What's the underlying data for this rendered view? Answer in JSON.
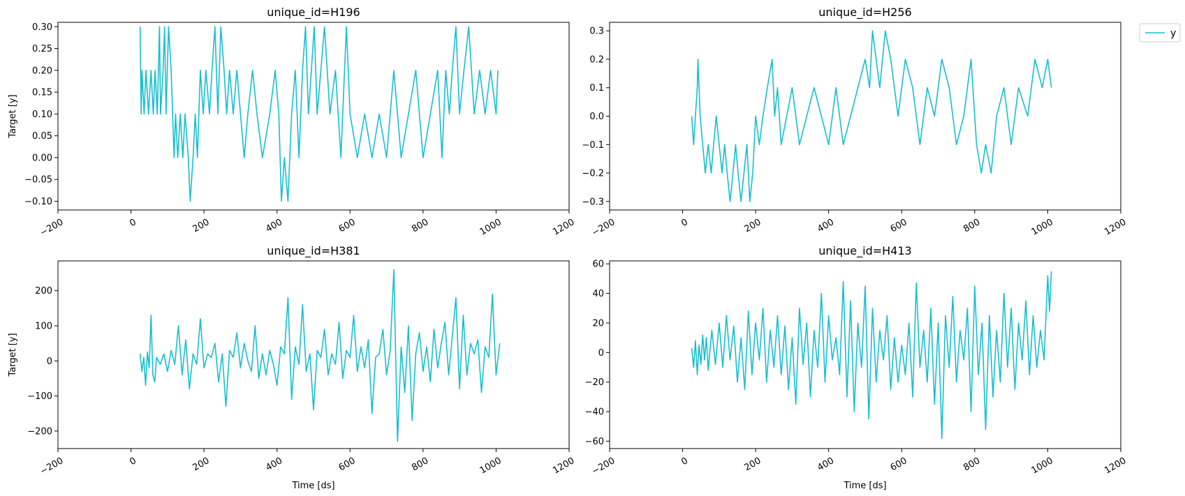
{
  "chart_data": [
    {
      "type": "line",
      "title": "unique_id=H196",
      "xlabel": "",
      "ylabel": "Target [y]",
      "xlim": [
        -200,
        1200
      ],
      "ylim": [
        -0.12,
        0.31
      ],
      "xticks": [
        -200,
        0,
        200,
        400,
        600,
        800,
        1000,
        1200
      ],
      "yticks": [
        -0.1,
        -0.05,
        0.0,
        0.05,
        0.1,
        0.15,
        0.2,
        0.25,
        0.3
      ],
      "ytick_labels": [
        "−0.10",
        "−0.05",
        "0.00",
        "0.05",
        "0.10",
        "0.15",
        "0.20",
        "0.25",
        "0.30"
      ],
      "series": [
        {
          "name": "y",
          "color": "#17becf",
          "x": [
            25,
            28,
            30,
            36,
            41,
            48,
            55,
            61,
            66,
            72,
            78,
            81,
            88,
            92,
            96,
            103,
            110,
            118,
            122,
            128,
            135,
            142,
            148,
            157,
            162,
            170,
            176,
            182,
            190,
            198,
            205,
            215,
            222,
            230,
            238,
            246,
            255,
            262,
            270,
            280,
            290,
            300,
            310,
            320,
            333,
            345,
            360,
            380,
            395,
            405,
            412,
            420,
            430,
            440,
            450,
            460,
            470,
            478,
            486,
            494,
            502,
            510,
            520,
            530,
            545,
            560,
            575,
            585,
            590,
            600,
            620,
            640,
            660,
            680,
            700,
            720,
            740,
            760,
            780,
            800,
            820,
            840,
            852,
            862,
            872,
            880,
            890,
            900,
            912,
            925,
            940,
            955,
            970,
            985,
            1000,
            1005
          ],
          "y": [
            0.3,
            0.1,
            0.2,
            0.1,
            0.2,
            0.1,
            0.2,
            0.1,
            0.2,
            0.1,
            0.3,
            0.1,
            0.2,
            0.3,
            0.1,
            0.3,
            0.2,
            0.0,
            0.1,
            0.0,
            0.1,
            0.0,
            0.1,
            0.0,
            -0.1,
            0.0,
            0.1,
            0.0,
            0.2,
            0.1,
            0.2,
            0.1,
            0.2,
            0.3,
            0.1,
            0.3,
            0.2,
            0.1,
            0.2,
            0.1,
            0.2,
            0.1,
            0.0,
            0.1,
            0.2,
            0.1,
            0.0,
            0.1,
            0.2,
            0.1,
            -0.1,
            0.0,
            -0.1,
            0.1,
            0.2,
            0.0,
            0.2,
            0.3,
            0.1,
            0.2,
            0.3,
            0.1,
            0.2,
            0.3,
            0.1,
            0.2,
            0.0,
            0.2,
            0.3,
            0.1,
            0.0,
            0.1,
            0.0,
            0.1,
            0.0,
            0.2,
            0.0,
            0.1,
            0.2,
            0.0,
            0.1,
            0.2,
            0.0,
            0.2,
            0.1,
            0.2,
            0.3,
            0.1,
            0.2,
            0.3,
            0.1,
            0.2,
            0.1,
            0.2,
            0.1,
            0.2
          ]
        }
      ]
    },
    {
      "type": "line",
      "title": "unique_id=H256",
      "xlabel": "",
      "ylabel": "",
      "xlim": [
        -200,
        1200
      ],
      "ylim": [
        -0.33,
        0.33
      ],
      "xticks": [
        -200,
        0,
        200,
        400,
        600,
        800,
        1000,
        1200
      ],
      "yticks": [
        -0.3,
        -0.2,
        -0.1,
        0.0,
        0.1,
        0.2,
        0.3
      ],
      "ytick_labels": [
        "−0.3",
        "−0.2",
        "−0.1",
        "0.0",
        "0.1",
        "0.2",
        "0.3"
      ],
      "series": [
        {
          "name": "y",
          "color": "#17becf",
          "x": [
            25,
            30,
            35,
            40,
            42,
            48,
            55,
            62,
            70,
            78,
            85,
            92,
            100,
            108,
            115,
            122,
            130,
            138,
            145,
            152,
            160,
            168,
            176,
            184,
            192,
            200,
            210,
            220,
            232,
            245,
            252,
            260,
            270,
            285,
            300,
            320,
            340,
            360,
            380,
            400,
            420,
            440,
            460,
            480,
            500,
            512,
            520,
            530,
            540,
            555,
            570,
            590,
            610,
            630,
            650,
            670,
            690,
            710,
            730,
            750,
            770,
            790,
            805,
            818,
            830,
            845,
            860,
            880,
            900,
            920,
            945,
            965,
            985,
            1000,
            1010
          ],
          "y": [
            0.0,
            -0.1,
            0.0,
            0.1,
            0.2,
            0.0,
            -0.1,
            -0.2,
            -0.1,
            -0.2,
            -0.1,
            0.0,
            -0.1,
            -0.2,
            -0.1,
            -0.2,
            -0.3,
            -0.2,
            -0.1,
            -0.2,
            -0.3,
            -0.2,
            -0.1,
            -0.3,
            -0.2,
            0.0,
            -0.1,
            0.0,
            0.1,
            0.2,
            0.0,
            0.1,
            -0.1,
            0.0,
            0.1,
            -0.1,
            0.0,
            0.1,
            0.0,
            -0.1,
            0.1,
            -0.1,
            0.0,
            0.1,
            0.2,
            0.1,
            0.3,
            0.2,
            0.1,
            0.3,
            0.2,
            0.0,
            0.2,
            0.1,
            -0.1,
            0.1,
            0.0,
            0.2,
            0.1,
            -0.1,
            0.0,
            0.2,
            -0.1,
            -0.2,
            -0.1,
            -0.2,
            0.0,
            0.1,
            -0.1,
            0.1,
            0.0,
            0.2,
            0.1,
            0.2,
            0.1
          ]
        }
      ]
    },
    {
      "type": "line",
      "title": "unique_id=H381",
      "xlabel": "Time [ds]",
      "ylabel": "Target [y]",
      "xlim": [
        -200,
        1200
      ],
      "ylim": [
        -250,
        285
      ],
      "xticks": [
        -200,
        0,
        200,
        400,
        600,
        800,
        1000,
        1200
      ],
      "yticks": [
        -200,
        -100,
        0,
        100,
        200
      ],
      "ytick_labels": [
        "−200",
        "−100",
        "0",
        "100",
        "200"
      ],
      "series": [
        {
          "name": "y",
          "color": "#17becf",
          "x": [
            25,
            30,
            35,
            40,
            45,
            50,
            55,
            60,
            65,
            70,
            80,
            90,
            100,
            110,
            120,
            130,
            140,
            150,
            160,
            170,
            180,
            190,
            200,
            210,
            220,
            230,
            240,
            250,
            260,
            270,
            280,
            290,
            300,
            310,
            320,
            330,
            340,
            350,
            360,
            370,
            380,
            390,
            400,
            410,
            420,
            430,
            440,
            450,
            460,
            470,
            480,
            490,
            500,
            510,
            520,
            530,
            540,
            550,
            560,
            570,
            580,
            590,
            600,
            610,
            620,
            630,
            640,
            650,
            660,
            670,
            680,
            690,
            700,
            710,
            720,
            730,
            740,
            750,
            760,
            770,
            780,
            790,
            800,
            810,
            820,
            830,
            840,
            850,
            860,
            870,
            880,
            890,
            900,
            910,
            920,
            930,
            940,
            950,
            960,
            970,
            980,
            990,
            1000,
            1010
          ],
          "y": [
            20,
            -30,
            10,
            -70,
            25,
            -20,
            130,
            -40,
            -60,
            10,
            -10,
            20,
            -30,
            30,
            -10,
            100,
            -40,
            60,
            -80,
            20,
            -10,
            120,
            -20,
            20,
            10,
            50,
            -60,
            20,
            -130,
            30,
            10,
            80,
            -20,
            50,
            0,
            -30,
            100,
            -50,
            20,
            -40,
            30,
            -10,
            -70,
            40,
            20,
            180,
            -110,
            40,
            -10,
            160,
            -30,
            20,
            -140,
            30,
            10,
            90,
            -40,
            20,
            -10,
            110,
            -50,
            30,
            10,
            130,
            -30,
            40,
            -20,
            60,
            -150,
            10,
            20,
            90,
            -40,
            30,
            260,
            -230,
            40,
            -90,
            100,
            -170,
            20,
            80,
            -30,
            40,
            -60,
            90,
            -20,
            50,
            110,
            -40,
            70,
            180,
            -80,
            130,
            -40,
            50,
            20,
            60,
            -90,
            40,
            10,
            190,
            -40,
            50
          ]
        }
      ]
    },
    {
      "type": "line",
      "title": "unique_id=H413",
      "xlabel": "Time [ds]",
      "ylabel": "",
      "xlim": [
        -200,
        1200
      ],
      "ylim": [
        -65,
        62
      ],
      "xticks": [
        -200,
        0,
        200,
        400,
        600,
        800,
        1000,
        1200
      ],
      "yticks": [
        -60,
        -40,
        -20,
        0,
        20,
        40,
        60
      ],
      "ytick_labels": [
        "−60",
        "−40",
        "−20",
        "0",
        "20",
        "40",
        "60"
      ],
      "series": [
        {
          "name": "y",
          "color": "#17becf",
          "x": [
            25,
            30,
            35,
            40,
            45,
            50,
            55,
            60,
            65,
            70,
            80,
            90,
            100,
            110,
            120,
            130,
            140,
            150,
            160,
            170,
            180,
            190,
            200,
            210,
            220,
            230,
            240,
            250,
            260,
            270,
            280,
            290,
            300,
            310,
            320,
            330,
            340,
            350,
            360,
            370,
            380,
            390,
            400,
            410,
            420,
            430,
            440,
            450,
            460,
            470,
            480,
            490,
            500,
            510,
            520,
            530,
            540,
            550,
            560,
            570,
            580,
            590,
            600,
            610,
            620,
            630,
            640,
            650,
            660,
            670,
            680,
            690,
            700,
            710,
            720,
            730,
            740,
            750,
            760,
            770,
            780,
            790,
            800,
            810,
            820,
            830,
            840,
            850,
            860,
            870,
            880,
            890,
            900,
            910,
            920,
            930,
            940,
            950,
            960,
            970,
            980,
            990,
            1000,
            1005,
            1010
          ],
          "y": [
            3,
            -10,
            8,
            -15,
            5,
            -8,
            12,
            -5,
            10,
            -12,
            15,
            -8,
            20,
            -10,
            25,
            -5,
            18,
            -20,
            10,
            -25,
            28,
            -15,
            20,
            -5,
            30,
            -20,
            15,
            -10,
            25,
            -15,
            18,
            -25,
            10,
            -35,
            30,
            -8,
            20,
            -30,
            15,
            -10,
            40,
            -20,
            25,
            -5,
            10,
            -15,
            48,
            -30,
            35,
            -40,
            20,
            -10,
            45,
            -45,
            30,
            -20,
            15,
            -5,
            25,
            -25,
            10,
            -20,
            5,
            -15,
            20,
            -30,
            47,
            -10,
            15,
            -20,
            30,
            -35,
            20,
            -58,
            25,
            -10,
            38,
            -20,
            15,
            -5,
            30,
            -40,
            45,
            -15,
            20,
            -52,
            25,
            -30,
            15,
            -20,
            40,
            -10,
            30,
            -25,
            20,
            -5,
            35,
            -15,
            25,
            -10,
            15,
            -5,
            52,
            28,
            55
          ]
        }
      ]
    }
  ]
}
